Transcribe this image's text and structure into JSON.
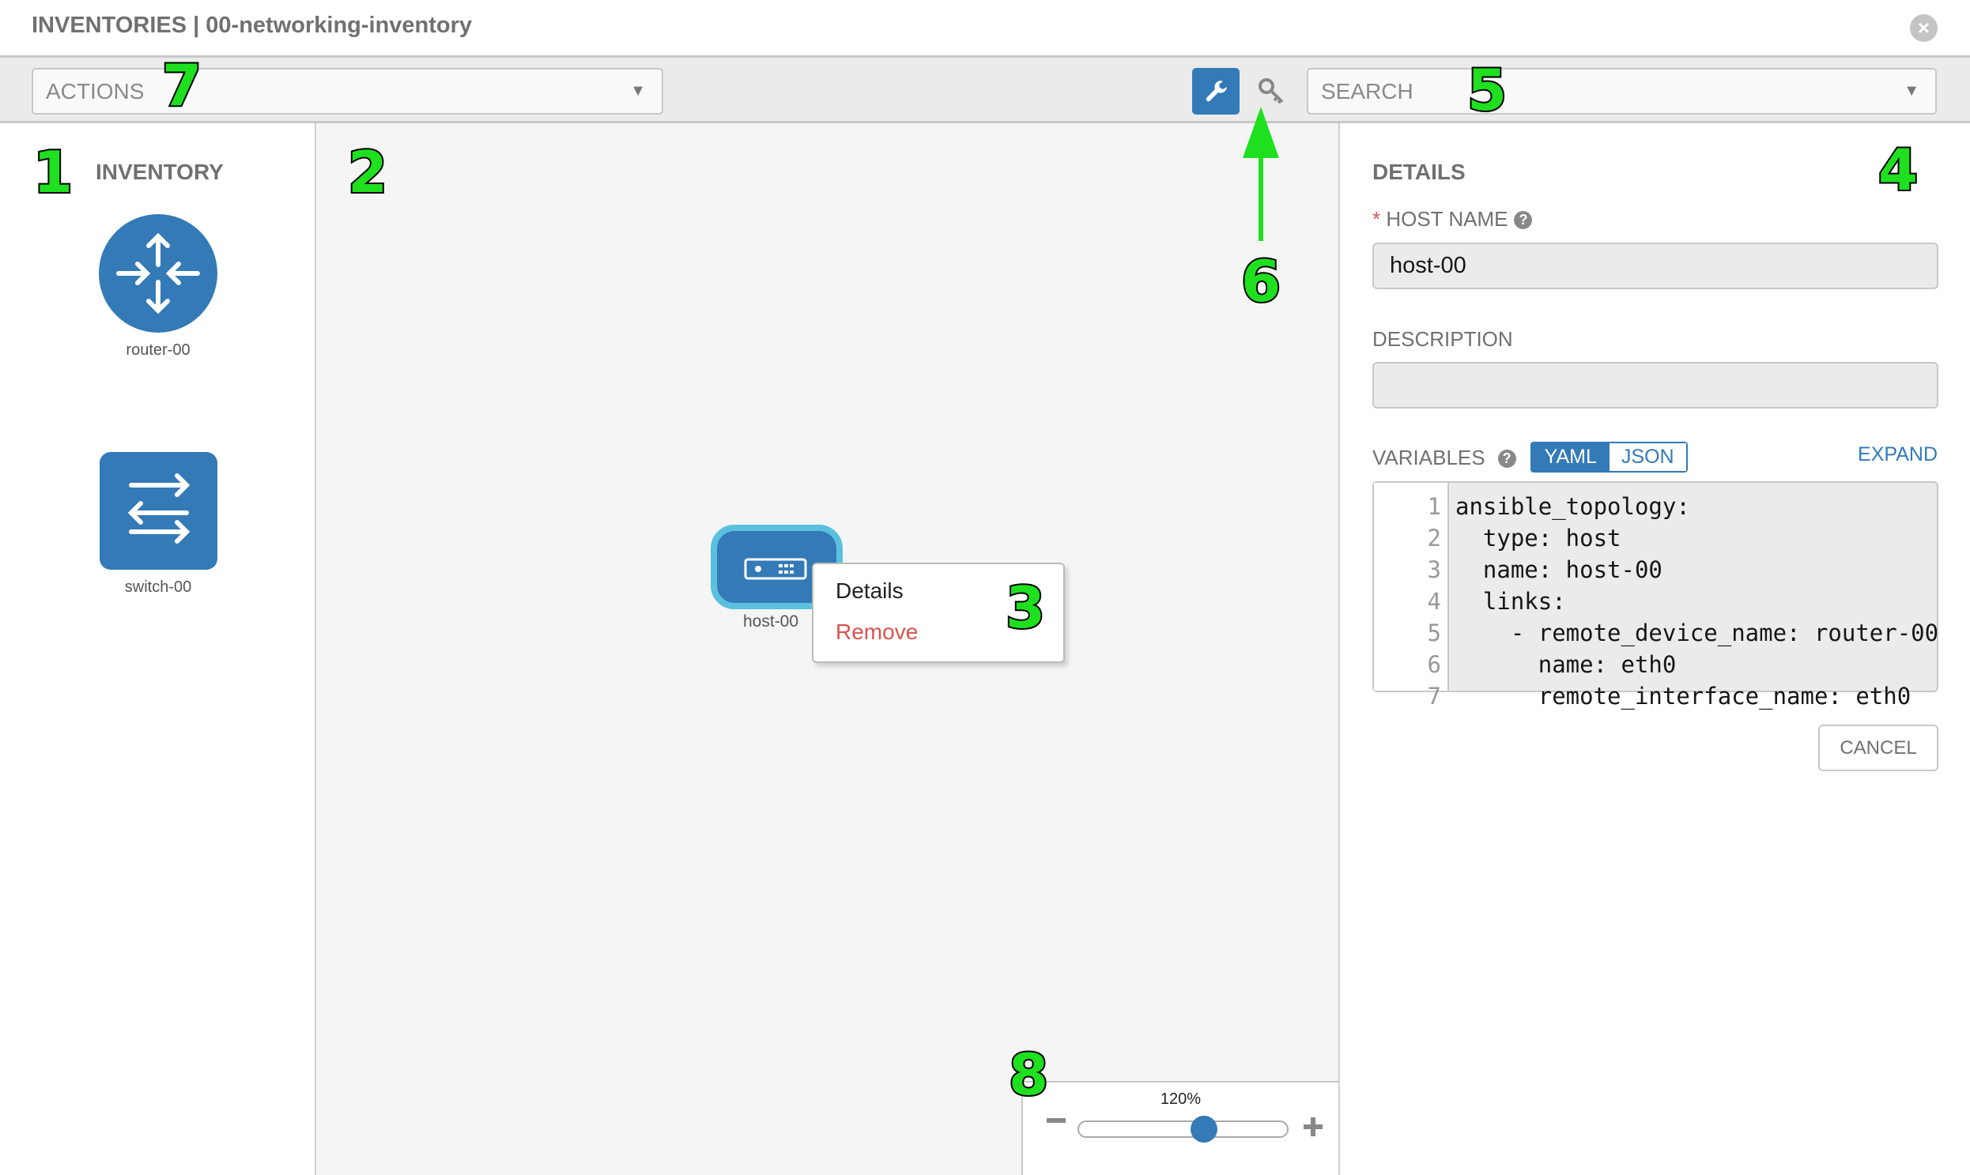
{
  "header": {
    "title": "INVENTORIES | 00-networking-inventory"
  },
  "toolbar": {
    "actions_placeholder": "ACTIONS",
    "search_placeholder": "SEARCH"
  },
  "inventory": {
    "heading": "INVENTORY",
    "items": [
      {
        "label": "router-00",
        "type": "router"
      },
      {
        "label": "switch-00",
        "type": "switch"
      }
    ]
  },
  "canvas": {
    "node": {
      "label": "host-00",
      "type": "host"
    },
    "context_menu": {
      "details": "Details",
      "remove": "Remove"
    },
    "zoom": {
      "label": "120%",
      "level_fraction": 0.6
    }
  },
  "details": {
    "heading": "DETAILS",
    "required_mark": "*",
    "host_name_label": "HOST NAME",
    "host_name_value": "host-00",
    "description_label": "DESCRIPTION",
    "description_value": "",
    "variables_label": "VARIABLES",
    "yaml": "YAML",
    "json": "JSON",
    "expand": "EXPAND",
    "lines": [
      {
        "n": "1",
        "text": "ansible_topology:"
      },
      {
        "n": "2",
        "text": "  type: host"
      },
      {
        "n": "3",
        "text": "  name: host-00"
      },
      {
        "n": "4",
        "text": "  links:"
      },
      {
        "n": "5",
        "text": "    - remote_device_name: router-00"
      },
      {
        "n": "6",
        "text": "      name: eth0"
      },
      {
        "n": "7",
        "text": "      remote_interface_name: eth0"
      }
    ],
    "cancel": "CANCEL"
  },
  "annotations": [
    "1",
    "2",
    "3",
    "4",
    "5",
    "6",
    "7",
    "8"
  ],
  "colors": {
    "accent": "#337ab7",
    "node_border": "#5bc0de",
    "remove": "#d9534f",
    "annotation": "#1fe01f"
  }
}
